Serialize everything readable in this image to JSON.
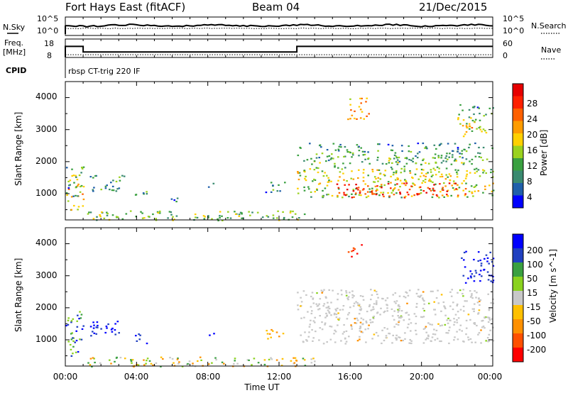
{
  "header": {
    "title": "Fort Hays East (fitACF)",
    "beam": "Beam 04",
    "date": "21/Dec/2015"
  },
  "params": {
    "nsky_label": "N.Sky",
    "nsearch_label": "N.Search",
    "freq_label": "Freq.",
    "freq_unit": "[MHz]",
    "nave_label": "Nave",
    "cpid_label": "CPID",
    "cpid_text": "rbsp CT-trig 220 IF",
    "noise_ticks": [
      "10^5",
      "10^0"
    ],
    "freq_ticks": [
      "18",
      "8"
    ],
    "nave_ticks": [
      "60",
      "0"
    ],
    "freq_mhz": [
      {
        "from": "00:00",
        "to": "01:00",
        "value": 14
      },
      {
        "from": "01:00",
        "to": "13:00",
        "value": 11
      },
      {
        "from": "13:00",
        "to": "24:00",
        "value": 14
      }
    ],
    "nave": 9
  },
  "axes": {
    "ylabel": "Slant Range [km]",
    "xlabel": "Time UT",
    "yticks": [
      "4000",
      "3000",
      "2000",
      "1000"
    ],
    "xticks": [
      "00:00",
      "04:00",
      "08:00",
      "12:00",
      "16:00",
      "20:00",
      "00:00"
    ]
  },
  "chart_data": [
    {
      "type": "heatmap",
      "quantity": "Power",
      "colorbar_label": "Power [dB]",
      "colorbar_ticks": [
        "28",
        "24",
        "20",
        "16",
        "12",
        "8",
        "4"
      ],
      "colors": [
        "#0000ff",
        "#1f5faa",
        "#3a8a70",
        "#3aa040",
        "#9ad21e",
        "#ffd000",
        "#ff9c00",
        "#ff6000",
        "#ff2000",
        "#e60000"
      ],
      "x_range_hours": [
        0,
        24
      ],
      "y_range_km": [
        180,
        4500
      ],
      "echo_regions": [
        {
          "t0": 0.0,
          "t1": 1.0,
          "r0": 500,
          "r1": 1900,
          "level": 0.65
        },
        {
          "t0": 0.0,
          "t1": 0.8,
          "r0": 900,
          "r1": 1300,
          "level": 0.25
        },
        {
          "t0": 1.3,
          "t1": 3.3,
          "r0": 1100,
          "r1": 1600,
          "level": 0.3
        },
        {
          "t0": 3.8,
          "t1": 4.6,
          "r0": 900,
          "r1": 1200,
          "level": 0.3
        },
        {
          "t0": 5.8,
          "t1": 6.3,
          "r0": 700,
          "r1": 1000,
          "level": 0.2
        },
        {
          "t0": 8.0,
          "t1": 8.4,
          "r0": 1150,
          "r1": 1350,
          "level": 0.3
        },
        {
          "t0": 11.2,
          "t1": 12.3,
          "r0": 1050,
          "r1": 1400,
          "level": 0.25
        },
        {
          "t0": 13.0,
          "t1": 24.0,
          "r0": 900,
          "r1": 2600,
          "level": 0.55
        },
        {
          "t0": 15.0,
          "t1": 22.5,
          "r0": 900,
          "r1": 1350,
          "level": 0.85
        },
        {
          "t0": 15.8,
          "t1": 17.0,
          "r0": 3300,
          "r1": 4000,
          "level": 0.6
        },
        {
          "t0": 22.0,
          "t1": 24.0,
          "r0": 2800,
          "r1": 3800,
          "level": 0.55
        },
        {
          "t0": 1.0,
          "t1": 14.0,
          "r0": 180,
          "r1": 480,
          "level": 0.4
        }
      ]
    },
    {
      "type": "heatmap",
      "quantity": "Velocity",
      "colorbar_label": "Velocity [m s^-1]",
      "colorbar_ticks": [
        "200",
        "100",
        "50",
        "15",
        "-15",
        "-50",
        "-100",
        "-200"
      ],
      "colors": [
        "#0000ff",
        "#2040c0",
        "#3aa040",
        "#8ad21e",
        "#c8c8c8",
        "#ffc000",
        "#ff9000",
        "#ff5000",
        "#ff0000"
      ],
      "x_range_hours": [
        0,
        24
      ],
      "y_range_km": [
        180,
        4500
      ],
      "echo_regions": [
        {
          "t0": 0.0,
          "t1": 1.0,
          "r0": 500,
          "r1": 1900,
          "vclass": "mixed-blue-green"
        },
        {
          "t0": 1.3,
          "t1": 3.3,
          "r0": 1100,
          "r1": 1600,
          "vclass": "blue"
        },
        {
          "t0": 3.8,
          "t1": 4.6,
          "r0": 900,
          "r1": 1200,
          "vclass": "blue"
        },
        {
          "t0": 8.0,
          "t1": 8.4,
          "r0": 1150,
          "r1": 1350,
          "vclass": "blue"
        },
        {
          "t0": 11.2,
          "t1": 12.3,
          "r0": 1050,
          "r1": 1400,
          "vclass": "orange"
        },
        {
          "t0": 13.0,
          "t1": 24.0,
          "r0": 900,
          "r1": 2600,
          "vclass": "grey"
        },
        {
          "t0": 15.8,
          "t1": 16.6,
          "r0": 3600,
          "r1": 4000,
          "vclass": "red"
        },
        {
          "t0": 22.2,
          "t1": 24.0,
          "r0": 2800,
          "r1": 3800,
          "vclass": "blue"
        },
        {
          "t0": 1.0,
          "t1": 14.0,
          "r0": 180,
          "r1": 480,
          "vclass": "orange-green"
        }
      ]
    }
  ]
}
